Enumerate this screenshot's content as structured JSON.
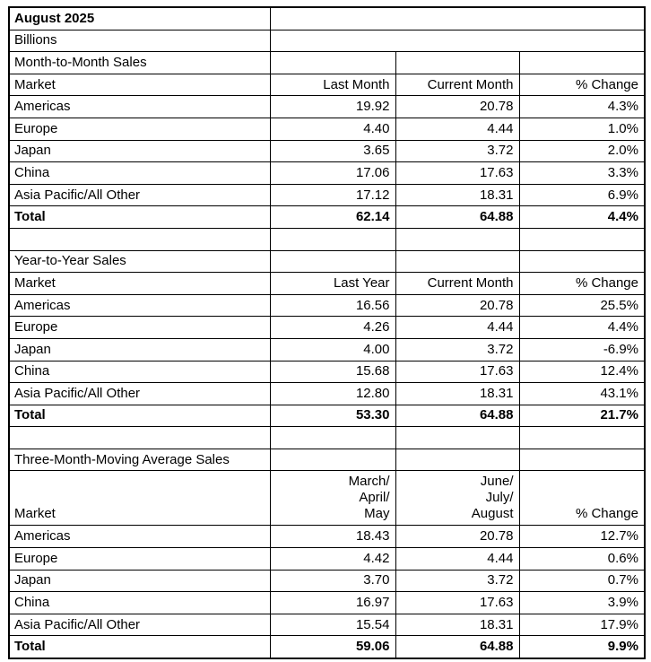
{
  "report": {
    "title": "August 2025",
    "units": "Billions"
  },
  "sections": [
    {
      "heading": "Month-to-Month Sales",
      "headers": {
        "market": "Market",
        "col1": "Last Month",
        "col2": "Current Month",
        "col3": "% Change"
      },
      "rows": [
        {
          "market": "Americas",
          "v1": "19.92",
          "v2": "20.78",
          "pct": "4.3%"
        },
        {
          "market": "Europe",
          "v1": "4.40",
          "v2": "4.44",
          "pct": "1.0%"
        },
        {
          "market": "Japan",
          "v1": "3.65",
          "v2": "3.72",
          "pct": "2.0%"
        },
        {
          "market": "China",
          "v1": "17.06",
          "v2": "17.63",
          "pct": "3.3%"
        },
        {
          "market": "Asia Pacific/All Other",
          "v1": "17.12",
          "v2": "18.31",
          "pct": "6.9%"
        }
      ],
      "total": {
        "market": "Total",
        "v1": "62.14",
        "v2": "64.88",
        "pct": "4.4%"
      }
    },
    {
      "heading": "Year-to-Year Sales",
      "headers": {
        "market": "Market",
        "col1": "Last Year",
        "col2": "Current Month",
        "col3": "% Change"
      },
      "rows": [
        {
          "market": "Americas",
          "v1": "16.56",
          "v2": "20.78",
          "pct": "25.5%"
        },
        {
          "market": "Europe",
          "v1": "4.26",
          "v2": "4.44",
          "pct": "4.4%"
        },
        {
          "market": "Japan",
          "v1": "4.00",
          "v2": "3.72",
          "pct": "-6.9%"
        },
        {
          "market": "China",
          "v1": "15.68",
          "v2": "17.63",
          "pct": "12.4%"
        },
        {
          "market": "Asia Pacific/All Other",
          "v1": "12.80",
          "v2": "18.31",
          "pct": "43.1%"
        }
      ],
      "total": {
        "market": "Total",
        "v1": "53.30",
        "v2": "64.88",
        "pct": "21.7%"
      }
    },
    {
      "heading": "Three-Month-Moving Average Sales",
      "headers": {
        "market": "Market",
        "col1": "March/\nApril/\nMay",
        "col2": "June/\nJuly/\nAugust",
        "col3": "% Change"
      },
      "rows": [
        {
          "market": "Americas",
          "v1": "18.43",
          "v2": "20.78",
          "pct": "12.7%"
        },
        {
          "market": "Europe",
          "v1": "4.42",
          "v2": "4.44",
          "pct": "0.6%"
        },
        {
          "market": "Japan",
          "v1": "3.70",
          "v2": "3.72",
          "pct": "0.7%"
        },
        {
          "market": "China",
          "v1": "16.97",
          "v2": "17.63",
          "pct": "3.9%"
        },
        {
          "market": "Asia Pacific/All Other",
          "v1": "15.54",
          "v2": "18.31",
          "pct": "17.9%"
        }
      ],
      "total": {
        "market": "Total",
        "v1": "59.06",
        "v2": "64.88",
        "pct": "9.9%"
      }
    }
  ]
}
